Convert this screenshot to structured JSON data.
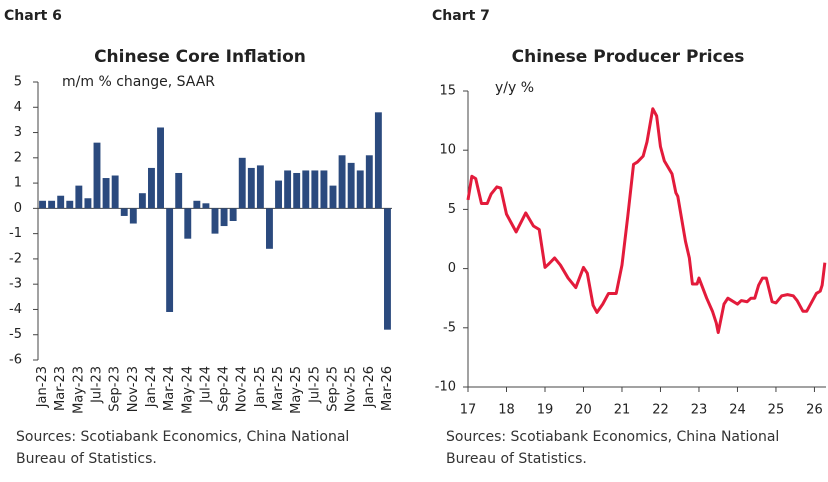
{
  "chart_data": [
    {
      "type": "bar",
      "label": "Chart 6",
      "title": "Chinese Core Inflation",
      "subtitle": "m/m % change, SAAR",
      "categories": [
        "Jan-23",
        null,
        "Mar-23",
        null,
        "May-23",
        null,
        "Jul-23",
        null,
        "Sep-23",
        null,
        "Nov-23",
        null,
        "Jan-24",
        null,
        "Mar-24",
        null,
        "May-24",
        null,
        "Jul-24",
        null,
        "Sep-24",
        null,
        "Nov-24",
        null,
        "Jan-25",
        null,
        "Mar-25",
        null,
        "May-25",
        null,
        "Jul-25",
        null,
        "Sep-25",
        null,
        "Nov-25",
        null,
        "Jan-26",
        null,
        "Mar-26"
      ],
      "values": [
        0.3,
        0.3,
        0.5,
        0.3,
        0.9,
        0.4,
        2.6,
        1.2,
        1.3,
        -0.3,
        -0.6,
        0.6,
        1.6,
        3.2,
        -4.1,
        1.4,
        -1.2,
        0.3,
        0.2,
        -1.0,
        -0.7,
        -0.5,
        2.0,
        1.6,
        1.7,
        -1.6,
        1.1,
        1.5,
        1.4,
        1.5,
        1.5,
        1.5,
        0.9,
        2.1,
        1.8,
        1.5,
        2.1,
        3.8,
        -4.8
      ],
      "color": "#2b4a7e",
      "ylim": [
        -6,
        5
      ],
      "yticks": [
        -6,
        -5,
        -4,
        -3,
        -2,
        -1,
        0,
        1,
        2,
        3,
        4,
        5
      ],
      "source": [
        "Sources: Scotiabank Economics, China National",
        "Bureau of Statistics."
      ]
    },
    {
      "type": "line",
      "label": "Chart 7",
      "title": "Chinese Producer Prices",
      "subtitle": "y/y %",
      "x": [
        17.0,
        17.1,
        17.2,
        17.35,
        17.5,
        17.6,
        17.75,
        17.85,
        18.0,
        18.25,
        18.5,
        18.7,
        18.85,
        19.0,
        19.1,
        19.25,
        19.4,
        19.6,
        19.8,
        20.0,
        20.1,
        20.25,
        20.35,
        20.5,
        20.65,
        20.85,
        21.0,
        21.15,
        21.3,
        21.4,
        21.55,
        21.65,
        21.8,
        21.9,
        22.0,
        22.1,
        22.3,
        22.4,
        22.45,
        22.55,
        22.65,
        22.75,
        22.83,
        22.95,
        23.0,
        23.2,
        23.35,
        23.45,
        23.5,
        23.65,
        23.75,
        23.85,
        24.0,
        24.1,
        24.25,
        24.35,
        24.45,
        24.55,
        24.65,
        24.75,
        24.9,
        25.0,
        25.15,
        25.3,
        25.45,
        25.55,
        25.7,
        25.8,
        25.95,
        26.05,
        26.15,
        26.2,
        26.27
      ],
      "series": [
        {
          "color": "#e31b3b",
          "values": [
            5.8,
            7.8,
            7.6,
            5.5,
            5.5,
            6.3,
            6.9,
            6.8,
            4.6,
            3.1,
            4.7,
            3.6,
            3.3,
            0.1,
            0.4,
            0.9,
            0.3,
            -0.8,
            -1.6,
            0.1,
            -0.4,
            -3.1,
            -3.7,
            -3.0,
            -2.1,
            -2.1,
            0.3,
            4.4,
            8.8,
            9.0,
            9.5,
            10.7,
            13.5,
            12.9,
            10.3,
            9.1,
            8.0,
            6.4,
            6.1,
            4.2,
            2.3,
            0.9,
            -1.3,
            -1.3,
            -0.8,
            -2.5,
            -3.6,
            -4.6,
            -5.4,
            -3.0,
            -2.5,
            -2.7,
            -3.0,
            -2.7,
            -2.8,
            -2.5,
            -2.5,
            -1.4,
            -0.8,
            -0.8,
            -2.8,
            -2.9,
            -2.3,
            -2.2,
            -2.3,
            -2.7,
            -3.6,
            -3.6,
            -2.7,
            -2.1,
            -1.9,
            -1.4,
            0.5
          ]
        }
      ],
      "xlim": [
        17,
        26.3
      ],
      "xticks": [
        17,
        18,
        19,
        20,
        21,
        22,
        23,
        24,
        25,
        26
      ],
      "ylim": [
        -10,
        15
      ],
      "yticks": [
        -10,
        -5,
        0,
        5,
        10,
        15
      ],
      "source": [
        "Sources: Scotiabank Economics, China National",
        "Bureau of Statistics."
      ]
    }
  ]
}
